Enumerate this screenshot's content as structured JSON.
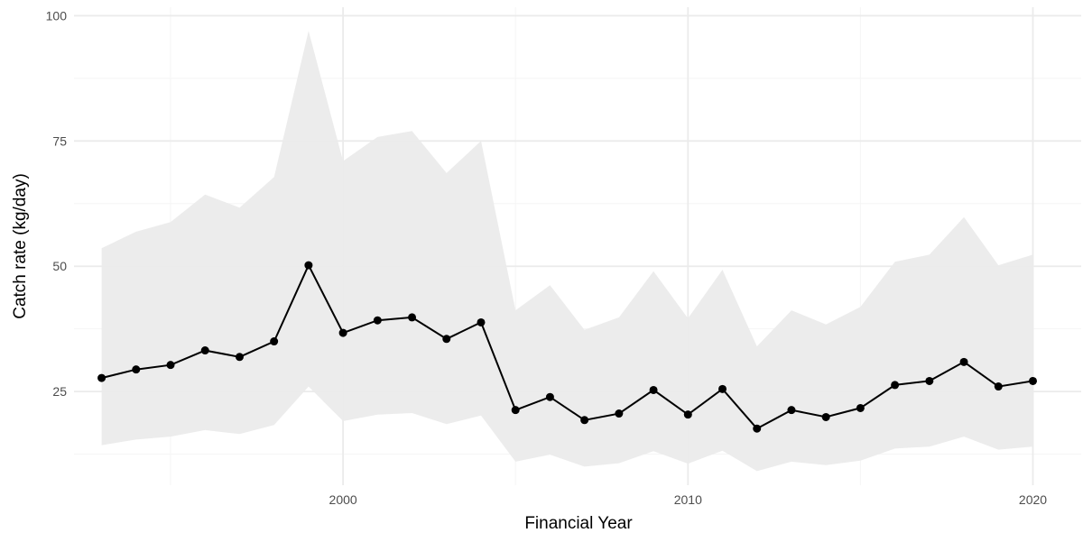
{
  "chart_data": {
    "type": "line",
    "title": "",
    "xlabel": "Financial Year",
    "ylabel": "Catch rate (kg/day)",
    "xlim": [
      1992.2,
      2021.4
    ],
    "ylim": [
      6.3,
      101.7
    ],
    "x_ticks": [
      2000,
      2010,
      2020
    ],
    "y_ticks": [
      25,
      50,
      75,
      100
    ],
    "grid": true,
    "legend": "none",
    "series": [
      {
        "x": [
          1993,
          1994,
          1995,
          1996,
          1997,
          1998,
          1999,
          2000,
          2001,
          2002,
          2003,
          2004,
          2005,
          2006,
          2007,
          2008,
          2009,
          2010,
          2011,
          2012,
          2013,
          2014,
          2015,
          2016,
          2017,
          2018,
          2019,
          2020
        ],
        "y": [
          27.7,
          29.4,
          30.3,
          33.2,
          31.9,
          35.0,
          50.2,
          36.7,
          39.2,
          39.8,
          35.5,
          38.8,
          21.3,
          23.9,
          19.3,
          20.6,
          25.3,
          20.4,
          25.5,
          17.6,
          21.3,
          19.9,
          21.7,
          26.3,
          27.1,
          30.9,
          26.0,
          27.1
        ],
        "lower": [
          14.3,
          15.4,
          16.0,
          17.3,
          16.5,
          18.3,
          26.0,
          19.1,
          20.4,
          20.7,
          18.5,
          20.2,
          11.0,
          12.4,
          10.0,
          10.7,
          13.1,
          10.6,
          13.2,
          9.1,
          11.0,
          10.3,
          11.2,
          13.6,
          14.0,
          16.0,
          13.4,
          14.0
        ],
        "upper": [
          53.6,
          56.9,
          58.8,
          64.3,
          61.7,
          67.8,
          97.0,
          71.0,
          75.8,
          77.0,
          68.6,
          75.0,
          41.2,
          46.2,
          37.3,
          39.8,
          49.0,
          39.6,
          49.3,
          34.0,
          41.2,
          38.4,
          41.9,
          50.9,
          52.3,
          59.8,
          50.2,
          52.3
        ]
      }
    ],
    "colors": {
      "line": "#000000",
      "points": "#000000",
      "ribbon": "#ebebeb",
      "grid_major": "#ebebeb",
      "grid_minor": "#f5f5f5",
      "tick_text": "#4d4d4d"
    }
  }
}
